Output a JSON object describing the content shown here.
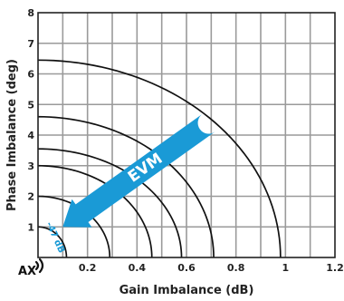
{
  "chart_data": {
    "type": "line",
    "title": "",
    "xlabel": "Gain Imbalance (dB)",
    "ylabel": "Phase Imbalance (deg)",
    "xlim": [
      0,
      1.2
    ],
    "ylim": [
      0,
      8
    ],
    "x_ticks": [
      "0.2",
      "0.4",
      "0.6",
      "0.8",
      "1",
      "1.2"
    ],
    "y_ticks": [
      "1",
      "2",
      "3",
      "4",
      "5",
      "6",
      "7",
      "8"
    ],
    "grid": true,
    "series": [
      {
        "points": [
          [
            0.115,
            0.0
          ],
          [
            0.0,
            1.0
          ]
        ]
      },
      {
        "points": [
          [
            0.29,
            0.0
          ],
          [
            0.0,
            2.0
          ]
        ]
      },
      {
        "points": [
          [
            0.46,
            0.0
          ],
          [
            0.0,
            3.0
          ]
        ]
      },
      {
        "points": [
          [
            0.58,
            0.0
          ],
          [
            0.0,
            3.55
          ]
        ]
      },
      {
        "points": [
          [
            0.71,
            0.0
          ],
          [
            0.0,
            4.6
          ]
        ]
      },
      {
        "points": [
          [
            0.98,
            0.0
          ],
          [
            0.0,
            6.45
          ]
        ]
      }
    ],
    "annotations": [
      {
        "text": "-47 dB",
        "color": "#1a9ad6"
      },
      {
        "text": "EVM",
        "color": "#1a9ad6",
        "style": "arrow",
        "direction": "toward origin"
      }
    ],
    "colors": {
      "curve": "#111111",
      "grid": "#9a9a9a",
      "accent": "#1a9ad6",
      "frame": "#222222"
    },
    "logo": {
      "text": "AX"
    }
  }
}
